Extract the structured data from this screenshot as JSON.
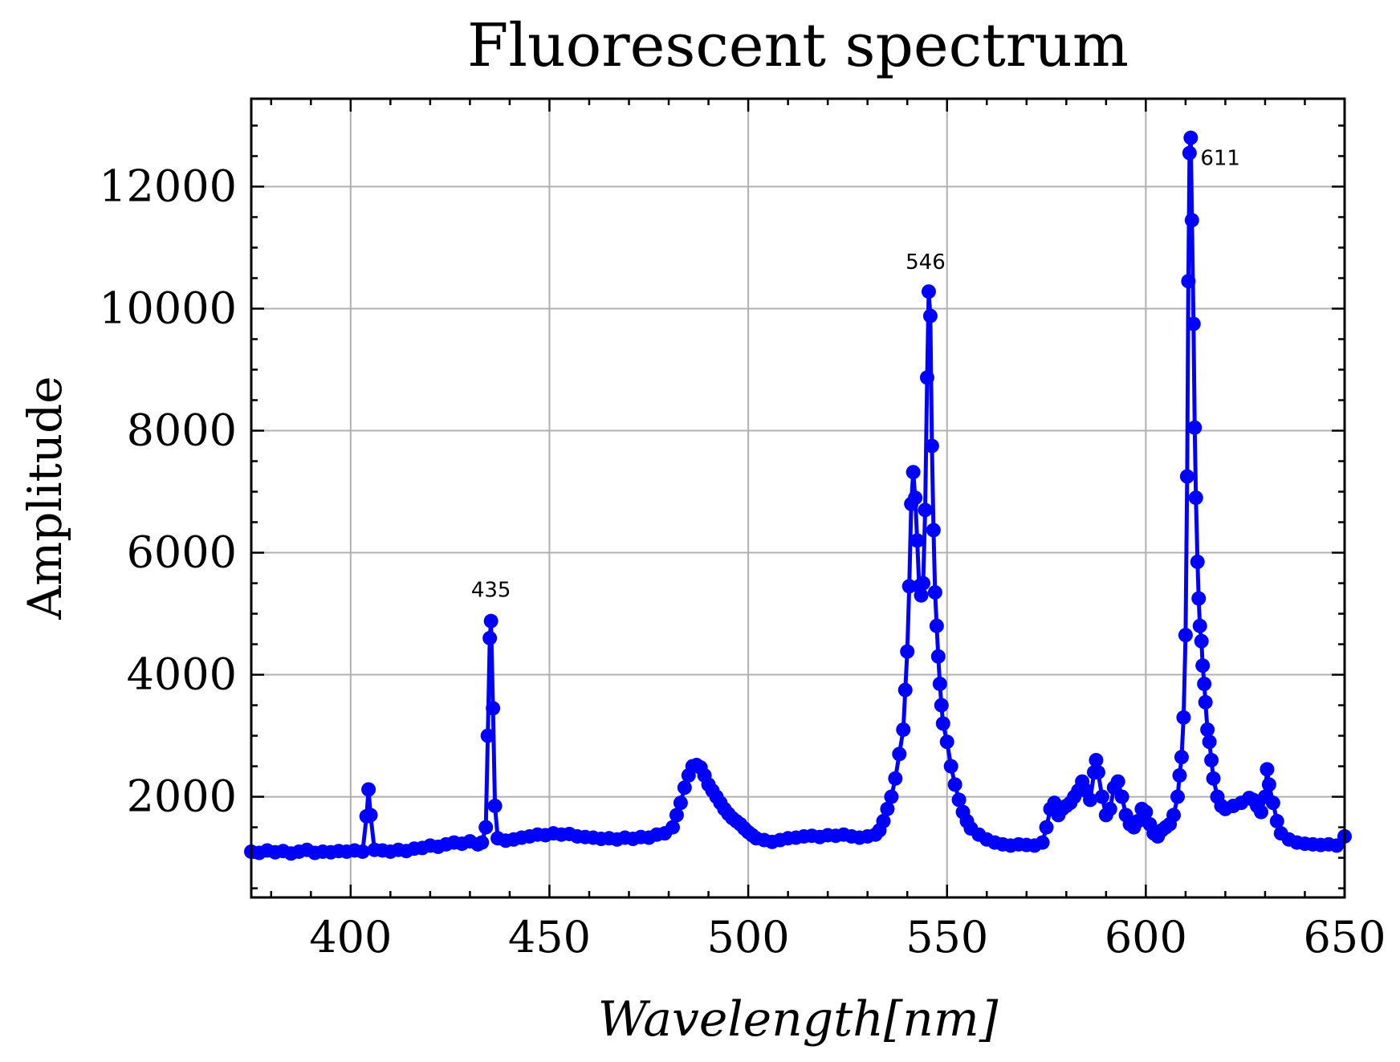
{
  "chart_data": {
    "type": "line",
    "title": "Fluorescent spectrum",
    "xlabel": "Wavelength[nm]",
    "ylabel": "Amplitude",
    "color": "#0000ff",
    "grid": true,
    "xlim": [
      375,
      650
    ],
    "ylim": [
      350,
      13440
    ],
    "xticks": [
      400,
      450,
      500,
      550,
      600,
      650
    ],
    "yticks": [
      2000,
      4000,
      6000,
      8000,
      10000,
      12000
    ],
    "xminorticks": [
      380,
      390,
      410,
      420,
      430,
      440,
      460,
      470,
      480,
      490,
      510,
      520,
      530,
      540,
      560,
      570,
      580,
      590,
      610,
      620,
      630,
      640
    ],
    "yminorticks": [
      500,
      1000,
      1500,
      2500,
      3000,
      3500,
      4500,
      5000,
      5500,
      6500,
      7000,
      7500,
      8500,
      9000,
      9500,
      10500,
      11000,
      11500,
      12500,
      13000
    ],
    "annotations": [
      {
        "text": "435",
        "x": 435.3,
        "y": 4880
      },
      {
        "text": "546",
        "x": 545.4,
        "y": 10280
      },
      {
        "text": "611",
        "x": 611.3,
        "y": 12800
      }
    ],
    "x": [
      375,
      377,
      379,
      381,
      383,
      385,
      387,
      389,
      391,
      393,
      395,
      397,
      399,
      401,
      403,
      404,
      404.5,
      405,
      406,
      408,
      410,
      412,
      414,
      416,
      418,
      420,
      422,
      424,
      426,
      428,
      430,
      432,
      433,
      434,
      434.5,
      435,
      435.3,
      435.8,
      436.3,
      437,
      439,
      441,
      443,
      445,
      447,
      449,
      451,
      453,
      455,
      457,
      459,
      461,
      463,
      465,
      467,
      469,
      471,
      473,
      475,
      477,
      479,
      481,
      482,
      483,
      484,
      485,
      486,
      487,
      488,
      489,
      490,
      491,
      492,
      493,
      494,
      495,
      496,
      497,
      498,
      499,
      500,
      501,
      502,
      504,
      506,
      508,
      510,
      512,
      514,
      516,
      518,
      520,
      522,
      524,
      526,
      528,
      530,
      532,
      533,
      534,
      535,
      536,
      537,
      538,
      539,
      539.5,
      540,
      540.5,
      541,
      541.5,
      542,
      542.5,
      543,
      543.5,
      544,
      544.5,
      545,
      545.4,
      545.8,
      546.2,
      546.6,
      547,
      547.4,
      547.8,
      548.2,
      548.6,
      549,
      550,
      551,
      552,
      553,
      554,
      555,
      556,
      558,
      560,
      562,
      564,
      566,
      568,
      570,
      572,
      574,
      575,
      576,
      577,
      578,
      579,
      580,
      581,
      582,
      583,
      584,
      585,
      586,
      587,
      587.5,
      588,
      589,
      590,
      591,
      592,
      593,
      594,
      595,
      596,
      597,
      598,
      599,
      600,
      601,
      602,
      603,
      604,
      605,
      606,
      607,
      608,
      608.5,
      609,
      609.5,
      610,
      610.4,
      610.7,
      611,
      611.3,
      611.6,
      612,
      612.3,
      612.6,
      613,
      613.3,
      613.6,
      614,
      614.3,
      614.7,
      615,
      615.5,
      616,
      616.5,
      617,
      618,
      619,
      620,
      622,
      624,
      626,
      627,
      628,
      629,
      630,
      630.5,
      631,
      632,
      633,
      634,
      636,
      638,
      640,
      642,
      644,
      646,
      648,
      650
    ],
    "values": [
      1100,
      1080,
      1120,
      1090,
      1110,
      1070,
      1100,
      1130,
      1080,
      1100,
      1090,
      1110,
      1100,
      1120,
      1100,
      1680,
      2120,
      1700,
      1130,
      1120,
      1100,
      1130,
      1110,
      1150,
      1160,
      1200,
      1180,
      1220,
      1250,
      1230,
      1270,
      1220,
      1250,
      1500,
      3000,
      4600,
      4880,
      3450,
      1850,
      1320,
      1280,
      1300,
      1330,
      1350,
      1380,
      1370,
      1400,
      1380,
      1390,
      1350,
      1340,
      1330,
      1310,
      1320,
      1300,
      1330,
      1310,
      1340,
      1330,
      1380,
      1400,
      1500,
      1700,
      1900,
      2150,
      2350,
      2500,
      2520,
      2480,
      2350,
      2200,
      2100,
      2000,
      1900,
      1800,
      1720,
      1650,
      1600,
      1550,
      1480,
      1420,
      1370,
      1320,
      1290,
      1260,
      1290,
      1320,
      1330,
      1350,
      1360,
      1340,
      1370,
      1360,
      1380,
      1350,
      1330,
      1350,
      1380,
      1450,
      1600,
      1800,
      2000,
      2300,
      2700,
      3100,
      3750,
      4380,
      5450,
      6800,
      7320,
      6900,
      6200,
      5450,
      5300,
      5500,
      6700,
      8870,
      10280,
      9880,
      7750,
      6370,
      5350,
      4800,
      4300,
      3850,
      3500,
      3200,
      2900,
      2500,
      2200,
      1950,
      1750,
      1600,
      1480,
      1380,
      1300,
      1250,
      1220,
      1200,
      1220,
      1210,
      1200,
      1250,
      1500,
      1800,
      1900,
      1700,
      1800,
      1850,
      1900,
      2000,
      2100,
      2250,
      2100,
      1950,
      2400,
      2600,
      2400,
      2000,
      1700,
      1800,
      2150,
      2250,
      2000,
      1700,
      1550,
      1500,
      1600,
      1800,
      1750,
      1550,
      1400,
      1350,
      1450,
      1500,
      1550,
      1700,
      2000,
      2350,
      2650,
      3300,
      4650,
      7250,
      10450,
      12550,
      12800,
      11450,
      9750,
      8050,
      6900,
      5850,
      5250,
      4800,
      4550,
      4150,
      3850,
      3550,
      3100,
      2900,
      2600,
      2300,
      2000,
      1850,
      1800,
      1850,
      1900,
      1980,
      1950,
      1850,
      1750,
      2000,
      2450,
      2200,
      1900,
      1600,
      1400,
      1300,
      1250,
      1230,
      1220,
      1210,
      1220,
      1200,
      1350
    ]
  }
}
